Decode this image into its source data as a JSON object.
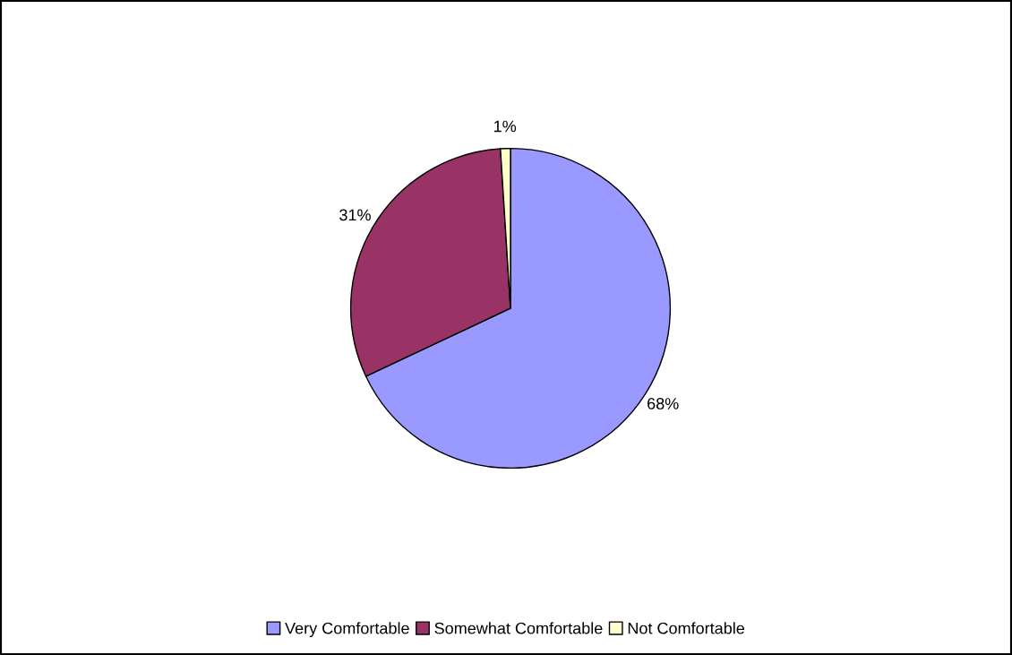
{
  "chart_data": {
    "type": "pie",
    "categories": [
      "Very Comfortable",
      "Somewhat Comfortable",
      "Not Comfortable"
    ],
    "values": [
      68,
      31,
      1
    ],
    "value_labels": [
      "68%",
      "31%",
      "1%"
    ],
    "colors": [
      "#9999ff",
      "#993366",
      "#ffffcc"
    ],
    "legend": "bottom"
  }
}
